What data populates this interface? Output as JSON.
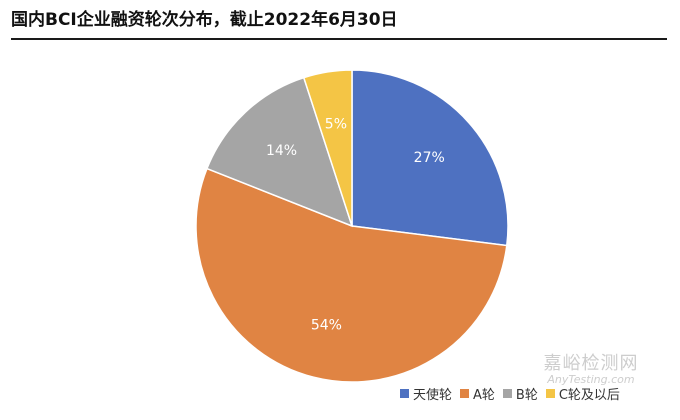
{
  "header": {
    "title": "国内BCI企业融资轮次分布，截止2022年6月30日"
  },
  "chart_data": {
    "type": "pie",
    "title": "国内BCI企业融资轮次分布，截止2022年6月30日",
    "start_angle_deg": 0,
    "direction": "clockwise",
    "slices": [
      {
        "name": "天使轮",
        "value": 27,
        "label": "27%",
        "color": "#4e71c1"
      },
      {
        "name": "A轮",
        "value": 54,
        "label": "54%",
        "color": "#e08443"
      },
      {
        "name": "B轮",
        "value": 14,
        "label": "14%",
        "color": "#a5a5a5"
      },
      {
        "name": "C轮及以后",
        "value": 5,
        "label": "5%",
        "color": "#f4c545"
      }
    ],
    "legend_position": "bottom-right"
  },
  "watermark": {
    "cn": "嘉峪检测网",
    "en": "AnyTesting.com"
  }
}
